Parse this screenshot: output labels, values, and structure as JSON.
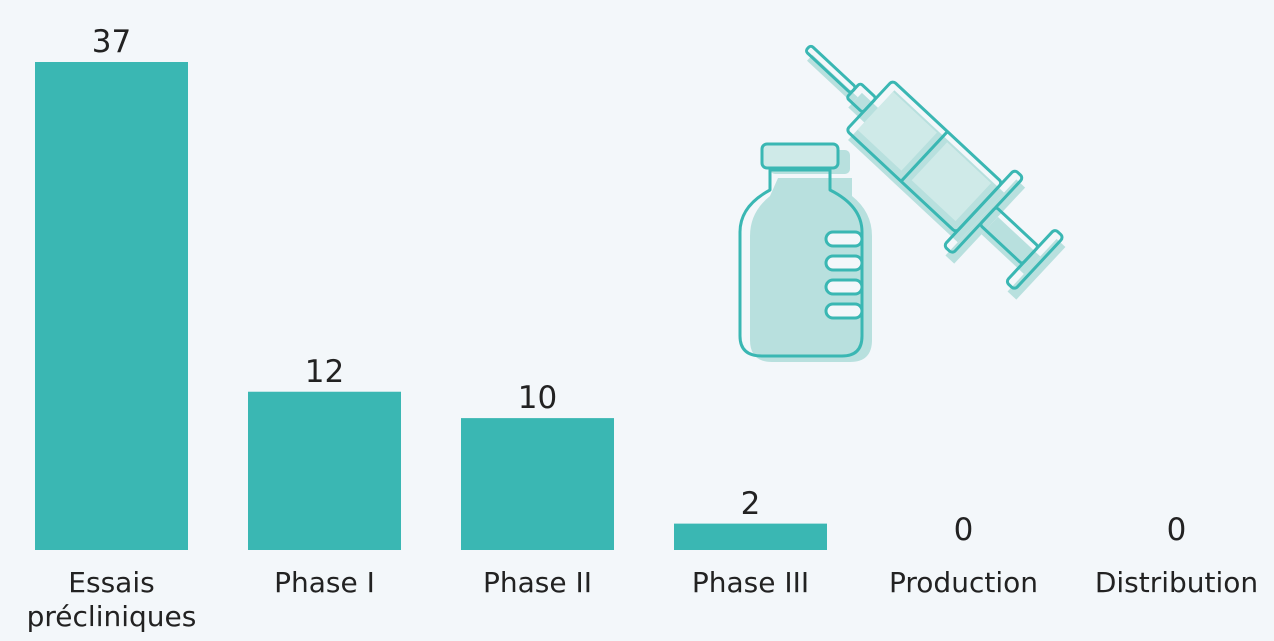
{
  "chart_data": {
    "type": "bar",
    "categories": [
      "Essais\nprécliniques",
      "Phase I",
      "Phase II",
      "Phase III",
      "Production",
      "Distribution"
    ],
    "values": [
      37,
      12,
      10,
      2,
      0,
      0
    ],
    "color": "#3ab7b3"
  }
}
